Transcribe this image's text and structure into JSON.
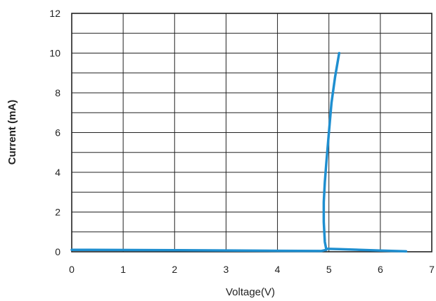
{
  "chart_data": {
    "type": "line",
    "title": "",
    "xlabel": "Voltage(V)",
    "ylabel": "Current (mA)",
    "xlim": [
      0,
      7
    ],
    "ylim": [
      0,
      12
    ],
    "x_ticks": [
      0,
      1,
      2,
      3,
      4,
      5,
      6,
      7
    ],
    "y_ticks": [
      0,
      2,
      4,
      6,
      8,
      10,
      12
    ],
    "x_tick_labels": [
      "0",
      "1",
      "2",
      "3",
      "4",
      "5",
      "6",
      "7"
    ],
    "y_tick_labels": [
      "0",
      "2",
      "4",
      "6",
      "8",
      "10",
      "12"
    ],
    "grid": true,
    "legend": "none",
    "series_color": "#1f8fd0",
    "series": [
      {
        "x": [
          0,
          2,
          4,
          4.85,
          4.95,
          4.92,
          4.9,
          4.9,
          4.92,
          4.95,
          5.0,
          5.05,
          5.12,
          5.2
        ],
        "y": [
          0.1,
          0.08,
          0.05,
          0.04,
          0.1,
          0.5,
          1.5,
          2.5,
          3.5,
          4.5,
          6.0,
          7.5,
          8.8,
          10.0
        ]
      },
      {
        "x": [
          4.95,
          5.2,
          5.6,
          6.0,
          6.5
        ],
        "y": [
          0.15,
          0.13,
          0.1,
          0.06,
          0.02
        ]
      }
    ]
  }
}
